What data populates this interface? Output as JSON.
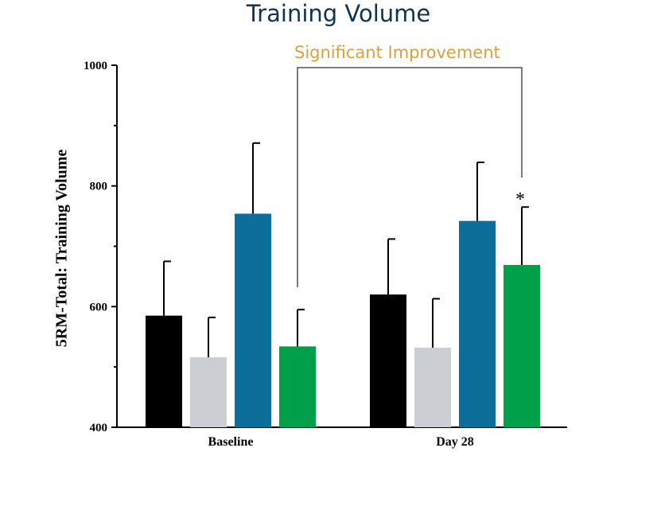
{
  "chart_data": {
    "type": "bar",
    "title": "Training Volume",
    "ylabel": "5RM-Total: Training Volume",
    "xlabel": "",
    "categories": [
      "Baseline",
      "Day 28"
    ],
    "ylim": [
      400,
      1000
    ],
    "yticks": [
      400,
      600,
      800,
      1000
    ],
    "series": [
      {
        "values": [
          585,
          620
        ],
        "errors": [
          90,
          92
        ],
        "color": "#000000"
      },
      {
        "values": [
          516,
          532
        ],
        "errors": [
          66,
          81
        ],
        "color": "#cbced2"
      },
      {
        "values": [
          754,
          742
        ],
        "errors": [
          117,
          97
        ],
        "color": "#0d6e99"
      },
      {
        "values": [
          534,
          669
        ],
        "errors": [
          61,
          96
        ],
        "color": "#00a04a"
      }
    ],
    "annotation": "Significant Improvement",
    "significance_marker": "*",
    "grid": false,
    "legend": "none"
  }
}
